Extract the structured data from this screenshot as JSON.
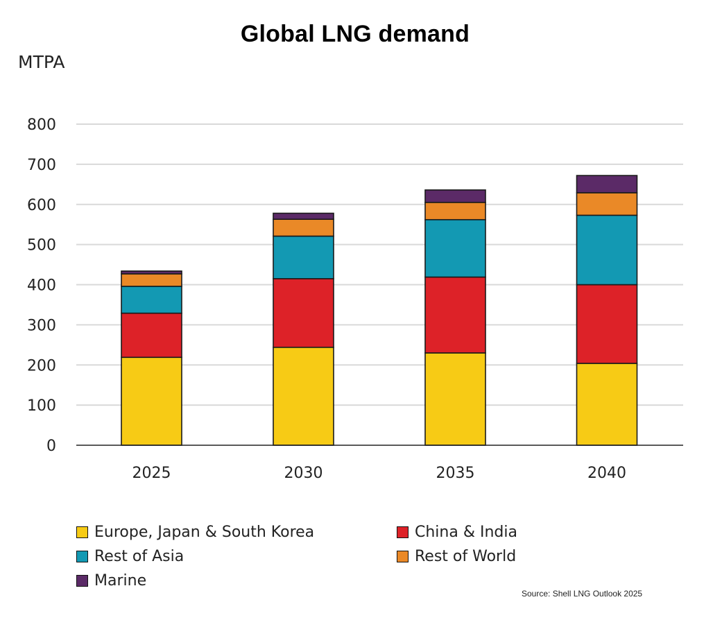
{
  "chart_data": {
    "type": "bar",
    "stacked": true,
    "title": "Global LNG demand",
    "ylabel": "MTPA",
    "xlabel": "",
    "categories": [
      "2025",
      "2030",
      "2035",
      "2040"
    ],
    "ylim": [
      0,
      800
    ],
    "yticks": [
      0,
      100,
      200,
      300,
      400,
      500,
      600,
      700,
      800
    ],
    "grid": true,
    "legend_position": "bottom",
    "series": [
      {
        "name": "Europe, Japan & South Korea",
        "color": "#F7CB15",
        "values": [
          219,
          244,
          230,
          204
        ]
      },
      {
        "name": "China & India",
        "color": "#DD2228",
        "values": [
          110,
          171,
          189,
          196
        ]
      },
      {
        "name": "Rest of Asia",
        "color": "#1399B3",
        "values": [
          67,
          106,
          143,
          173
        ]
      },
      {
        "name": "Rest of World",
        "color": "#EA8927",
        "values": [
          31,
          42,
          43,
          56
        ]
      },
      {
        "name": "Marine",
        "color": "#5B2A67",
        "values": [
          7,
          15,
          31,
          43
        ]
      }
    ],
    "source": "Source: Shell LNG Outlook 2025"
  }
}
